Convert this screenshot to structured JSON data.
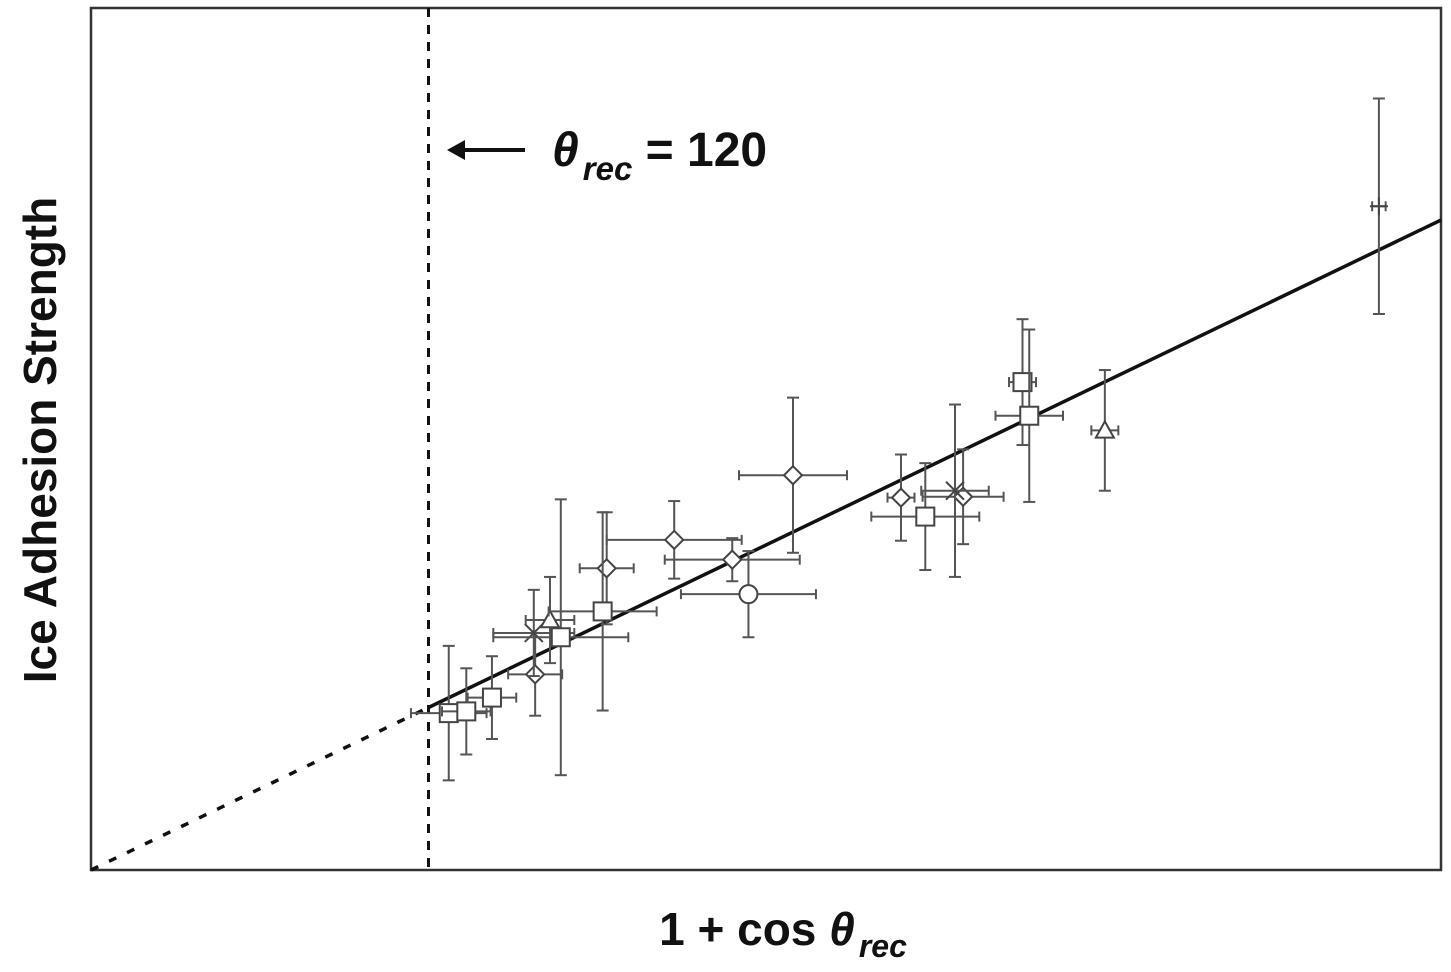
{
  "chart_data": {
    "type": "scatter",
    "xlabel": {
      "prefix": "1 + cos ",
      "symbol": "θ",
      "subscript": "rec"
    },
    "ylabel": "Ice Adhesion Strength",
    "xlim": [
      0,
      1
    ],
    "ylim": [
      0,
      1
    ],
    "grid": false,
    "annotation": {
      "symbol": "θ",
      "subscript": "rec",
      "suffix": " = 120",
      "x": 0.25
    },
    "fit_line": {
      "from": [
        0,
        0
      ],
      "to": [
        1,
        0.754
      ],
      "dashed_until_x": 0.25
    },
    "points": [
      {
        "marker": "square",
        "x": 0.265,
        "y": 0.182,
        "xerr": 0.028,
        "yerr": 0.078
      },
      {
        "marker": "square",
        "x": 0.278,
        "y": 0.184,
        "xerr": 0.018,
        "yerr": 0.05
      },
      {
        "marker": "square",
        "x": 0.297,
        "y": 0.2,
        "xerr": 0.018,
        "yerr": 0.048
      },
      {
        "marker": "diamond",
        "x": 0.329,
        "y": 0.227,
        "xerr": 0.02,
        "yerr": 0.048
      },
      {
        "marker": "x",
        "x": 0.328,
        "y": 0.275,
        "xerr": 0.03,
        "yerr": 0.05
      },
      {
        "marker": "triangle",
        "x": 0.34,
        "y": 0.29,
        "xerr": 0.018,
        "yerr": 0.05
      },
      {
        "marker": "square",
        "x": 0.348,
        "y": 0.27,
        "xerr": 0.05,
        "yerr": 0.16
      },
      {
        "marker": "diamond",
        "x": 0.382,
        "y": 0.35,
        "xerr": 0.02,
        "yerr": 0.065
      },
      {
        "marker": "square",
        "x": 0.379,
        "y": 0.3,
        "xerr": 0.04,
        "yerr": 0.115
      },
      {
        "marker": "diamond",
        "x": 0.432,
        "y": 0.383,
        "xerr": 0.05,
        "yerr": 0.045
      },
      {
        "marker": "diamond",
        "x": 0.475,
        "y": 0.36,
        "xerr": 0.05,
        "yerr": 0.025
      },
      {
        "marker": "circle",
        "x": 0.487,
        "y": 0.32,
        "xerr": 0.05,
        "yerr": 0.05
      },
      {
        "marker": "diamond",
        "x": 0.52,
        "y": 0.458,
        "xerr": 0.04,
        "yerr": 0.09
      },
      {
        "marker": "diamond",
        "x": 0.6,
        "y": 0.432,
        "xerr": 0.01,
        "yerr": 0.05
      },
      {
        "marker": "square",
        "x": 0.618,
        "y": 0.41,
        "xerr": 0.04,
        "yerr": 0.062
      },
      {
        "marker": "diamond",
        "x": 0.646,
        "y": 0.433,
        "xerr": 0.03,
        "yerr": 0.055
      },
      {
        "marker": "x",
        "x": 0.64,
        "y": 0.44,
        "xerr": 0.025,
        "yerr": 0.1
      },
      {
        "marker": "square",
        "x": 0.69,
        "y": 0.566,
        "xerr": 0.01,
        "yerr": 0.073
      },
      {
        "marker": "square",
        "x": 0.695,
        "y": 0.527,
        "xerr": 0.025,
        "yerr": 0.1
      },
      {
        "marker": "triangle",
        "x": 0.751,
        "y": 0.51,
        "xerr": 0.01,
        "yerr": 0.07
      },
      {
        "marker": "plus",
        "x": 0.954,
        "y": 0.77,
        "xerr": 0.005,
        "yerr": 0.125
      }
    ]
  }
}
